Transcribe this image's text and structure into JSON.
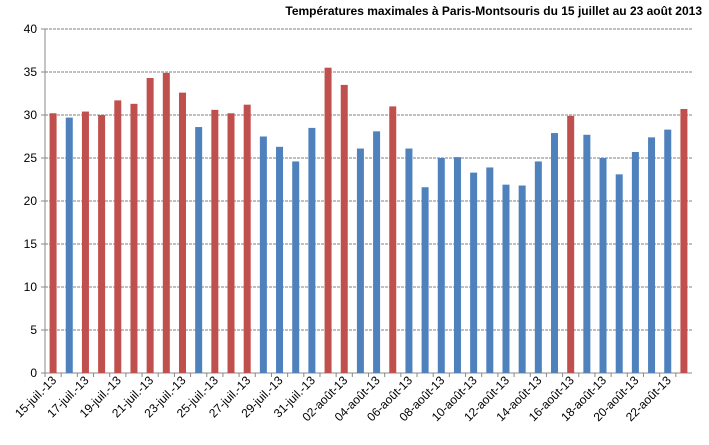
{
  "chart_data": {
    "type": "bar",
    "title": "Températures maximales à Paris-Montsouris  du 15 juillet au 23 août 2013",
    "xlabel": "",
    "ylabel": "",
    "ylim": [
      0,
      40
    ],
    "yticks": [
      0,
      5,
      10,
      15,
      20,
      25,
      30,
      35,
      40
    ],
    "grid": true,
    "categories": [
      "15-juil.-13",
      "16-juil.-13",
      "17-juil.-13",
      "18-juil.-13",
      "19-juil.-13",
      "20-juil.-13",
      "21-juil.-13",
      "22-juil.-13",
      "23-juil.-13",
      "24-juil.-13",
      "25-juil.-13",
      "26-juil.-13",
      "27-juil.-13",
      "28-juil.-13",
      "29-juil.-13",
      "30-juil.-13",
      "31-juil.-13",
      "01-août-13",
      "02-août-13",
      "03-août-13",
      "04-août-13",
      "05-août-13",
      "06-août-13",
      "07-août-13",
      "08-août-13",
      "09-août-13",
      "10-août-13",
      "11-août-13",
      "12-août-13",
      "13-août-13",
      "14-août-13",
      "15-août-13",
      "16-août-13",
      "17-août-13",
      "18-août-13",
      "19-août-13",
      "20-août-13",
      "21-août-13",
      "22-août-13",
      "23-août-13"
    ],
    "tick_labels": [
      "15-juil.-13",
      "17-juil.-13",
      "19-juil.-13",
      "21-juil.-13",
      "23-juil.-13",
      "25-juil.-13",
      "27-juil.-13",
      "29-juil.-13",
      "31-juil.-13",
      "02-août-13",
      "04-août-13",
      "06-août-13",
      "08-août-13",
      "10-août-13",
      "12-août-13",
      "14-août-13",
      "16-août-13",
      "18-août-13",
      "20-août-13",
      "22-août-13"
    ],
    "values": [
      30.2,
      29.7,
      30.4,
      30.0,
      31.7,
      31.3,
      34.3,
      34.9,
      32.6,
      28.6,
      30.6,
      30.2,
      31.2,
      27.5,
      26.3,
      24.6,
      28.5,
      35.5,
      33.5,
      26.1,
      28.1,
      31.0,
      26.1,
      21.6,
      25.0,
      25.1,
      23.3,
      23.9,
      21.9,
      21.8,
      24.6,
      27.9,
      29.9,
      27.7,
      25.0,
      23.1,
      25.7,
      27.4,
      28.3,
      30.7
    ],
    "colors": {
      "hot": "#C0504D",
      "normal": "#4F81BD"
    },
    "bar_color_rule_threshold": 29.9
  }
}
